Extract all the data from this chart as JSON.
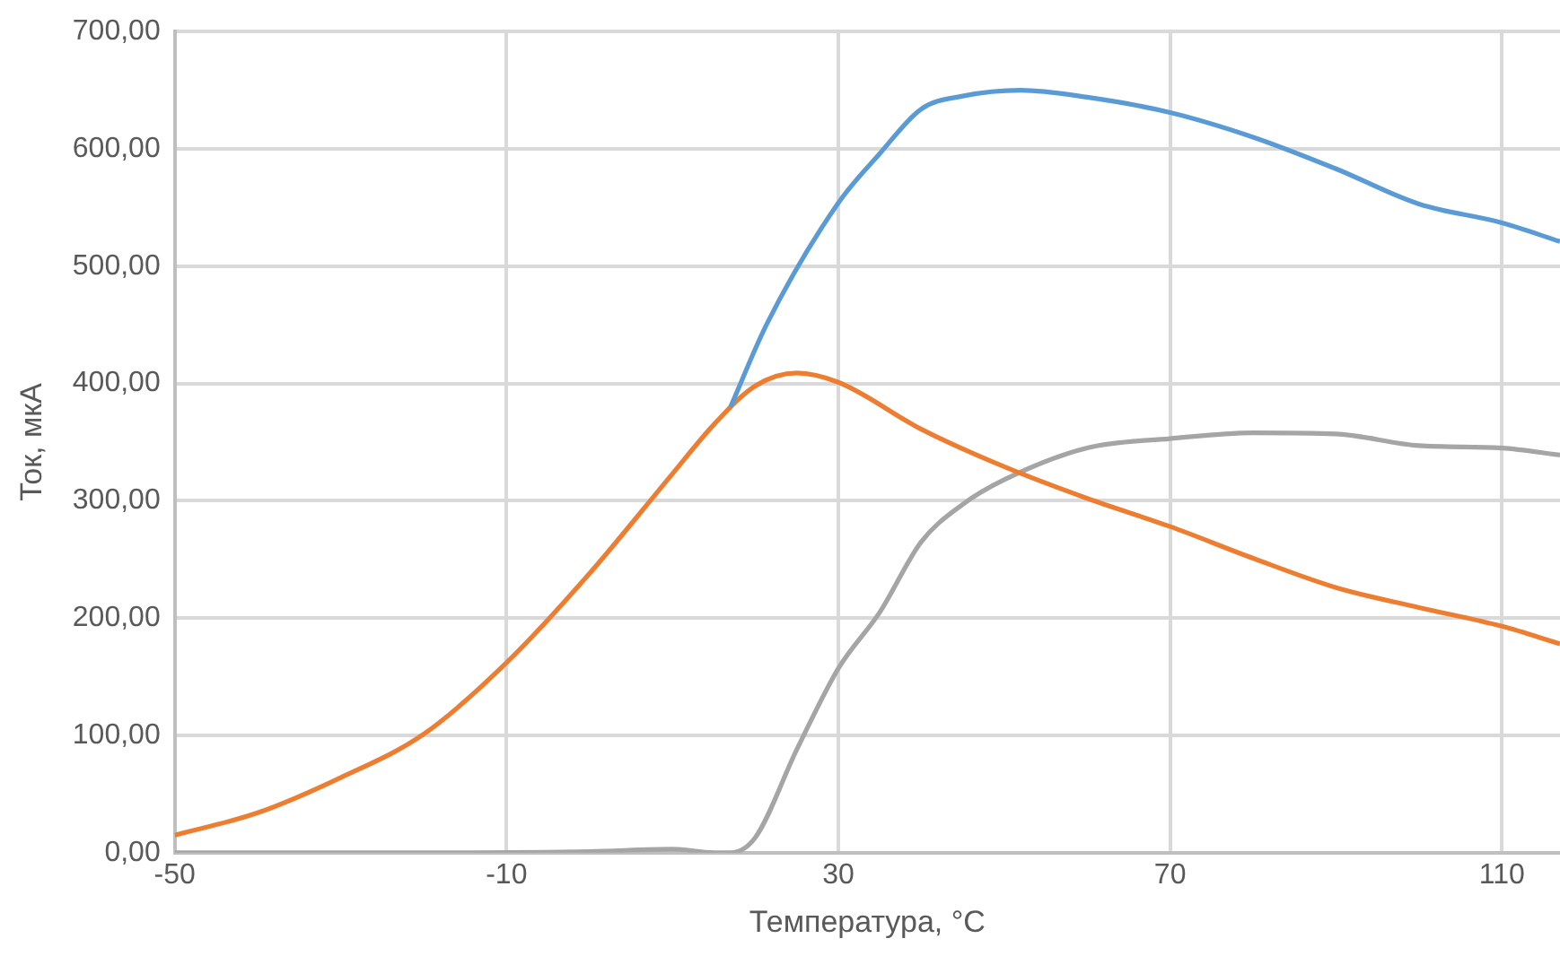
{
  "chart_data": {
    "type": "line",
    "xlabel": "Температура, °C",
    "ylabel": "Ток, мкА",
    "xlim": [
      -50,
      117
    ],
    "xticks": [
      -50,
      -10,
      30,
      70,
      110
    ],
    "ylim": [
      0,
      700
    ],
    "yticks": [
      {
        "value": 0,
        "label": "0,00"
      },
      {
        "value": 100,
        "label": "100,00"
      },
      {
        "value": 200,
        "label": "200,00"
      },
      {
        "value": 300,
        "label": "300,00"
      },
      {
        "value": 400,
        "label": "400,00"
      },
      {
        "value": 500,
        "label": "500,00"
      },
      {
        "value": 600,
        "label": "600,00"
      },
      {
        "value": 700,
        "label": "700,00"
      }
    ],
    "grid": true,
    "legend": false,
    "marker": "none",
    "line_style": "solid",
    "series": [
      {
        "color": "#5b9bd5",
        "x": [
          17,
          21.4,
          30,
          35,
          40,
          45,
          52,
          60,
          70,
          80,
          90,
          100,
          110,
          117
        ],
        "values": [
          380,
          451,
          554,
          596,
          634,
          645,
          650,
          644,
          631,
          610,
          583,
          553,
          537,
          521
        ]
      },
      {
        "color": "#ed7d31",
        "x": [
          -50,
          -40,
          -30,
          -20,
          -10,
          0,
          10,
          15,
          20,
          25,
          30,
          40,
          50,
          60,
          70,
          80,
          90,
          100,
          110,
          117
        ],
        "values": [
          15,
          34,
          64,
          101,
          162,
          238,
          323,
          365,
          398,
          409,
          401,
          361,
          329,
          302,
          278,
          251,
          226,
          209,
          193,
          178
        ]
      },
      {
        "color": "#a5a5a5",
        "x": [
          -50,
          -20,
          0,
          10,
          15,
          17,
          20,
          25,
          30,
          35,
          40,
          45,
          50,
          60,
          70,
          80,
          90,
          100,
          110,
          117
        ],
        "values": [
          0,
          0,
          1,
          3,
          0,
          0,
          13,
          88,
          157,
          205,
          265,
          297,
          318,
          345,
          353,
          358,
          357,
          347,
          345,
          339
        ]
      }
    ]
  }
}
